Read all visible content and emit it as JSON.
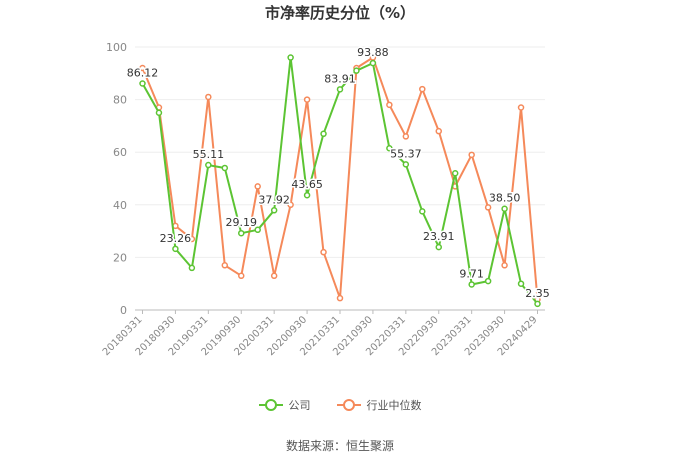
{
  "chart_data": {
    "type": "line",
    "title": "市净率历史分位（%）",
    "xlabel": "",
    "ylabel": "",
    "ylim": [
      0,
      100
    ],
    "yticks": [
      0,
      20,
      40,
      60,
      80,
      100
    ],
    "grid": true,
    "legend_position": "bottom",
    "x_tick_labels": [
      "20180331",
      "20180930",
      "20190331",
      "20190930",
      "20200331",
      "20200930",
      "20210331",
      "20210930",
      "20220331",
      "20220930",
      "20230331",
      "20230930",
      "20240429"
    ],
    "series": [
      {
        "name": "公司",
        "color": "#5cc433",
        "values": [
          86.12,
          75,
          23.26,
          16,
          55.11,
          54,
          29.19,
          30.5,
          37.92,
          96,
          43.65,
          67,
          83.91,
          91,
          93.88,
          61.5,
          55.37,
          37.5,
          23.91,
          52,
          9.71,
          11,
          38.5,
          10,
          2.35
        ],
        "data_labels": [
          {
            "index": 0,
            "text": "86.12"
          },
          {
            "index": 2,
            "text": "23.26"
          },
          {
            "index": 4,
            "text": "55.11"
          },
          {
            "index": 6,
            "text": "29.19"
          },
          {
            "index": 8,
            "text": "37.92"
          },
          {
            "index": 10,
            "text": "43.65"
          },
          {
            "index": 12,
            "text": "83.91"
          },
          {
            "index": 14,
            "text": "93.88"
          },
          {
            "index": 16,
            "text": "55.37"
          },
          {
            "index": 18,
            "text": "23.91"
          },
          {
            "index": 20,
            "text": "9.71"
          },
          {
            "index": 22,
            "text": "38.50"
          },
          {
            "index": 24,
            "text": "2.35"
          }
        ]
      },
      {
        "name": "行业中位数",
        "color": "#f5895a",
        "values": [
          92,
          77,
          32,
          27,
          81,
          17,
          13,
          47,
          13,
          40,
          80,
          22,
          4.5,
          92,
          96,
          78,
          66,
          84,
          68,
          47,
          59,
          39,
          17,
          77,
          4
        ]
      }
    ]
  },
  "source": "数据来源：恒生聚源"
}
